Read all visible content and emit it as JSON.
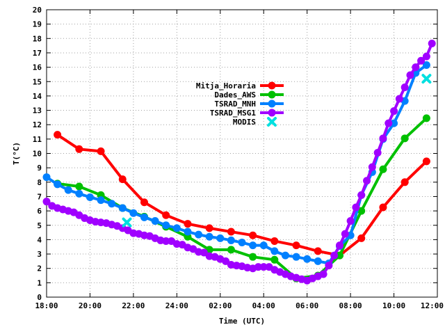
{
  "chart_data": {
    "type": "line",
    "xlabel": "Time (UTC)",
    "ylabel": "T(°C)",
    "x_unit": "hour",
    "xlim": [
      18,
      36
    ],
    "ylim": [
      0,
      20
    ],
    "x_ticks": [
      18,
      20,
      22,
      24,
      26,
      28,
      30,
      32,
      34,
      36
    ],
    "x_tick_labels": [
      "18:00",
      "20:00",
      "22:00",
      "24:00",
      "02:00",
      "04:00",
      "06:00",
      "08:00",
      "10:00",
      "12:00"
    ],
    "y_ticks": [
      0,
      1,
      2,
      3,
      4,
      5,
      6,
      7,
      8,
      9,
      10,
      11,
      12,
      13,
      14,
      15,
      16,
      17,
      18,
      19,
      20
    ],
    "grid": true,
    "legend_position": "center",
    "series": [
      {
        "name": "Mitja_Horaria",
        "color": "#ff0000",
        "marker": "circle",
        "x": [
          18.5,
          19.5,
          20.5,
          21.5,
          22.5,
          23.5,
          24.5,
          25.5,
          26.5,
          27.5,
          28.5,
          29.5,
          30.5,
          31.5,
          32.5,
          33.5,
          34.5,
          35.5
        ],
        "y": [
          11.3,
          10.3,
          10.15,
          8.2,
          6.6,
          5.7,
          5.1,
          4.8,
          4.55,
          4.3,
          3.9,
          3.6,
          3.2,
          2.9,
          4.1,
          6.25,
          8.0,
          9.45
        ]
      },
      {
        "name": "Dades_AWS",
        "color": "#00c000",
        "marker": "circle",
        "x": [
          18.5,
          19.5,
          20.5,
          21.5,
          22.5,
          23.5,
          24.5,
          25.5,
          26.5,
          27.5,
          28.5,
          29.5,
          30.5,
          31.5,
          32.5,
          33.5,
          34.5,
          35.5
        ],
        "y": [
          7.9,
          7.7,
          7.1,
          6.2,
          5.6,
          4.9,
          4.2,
          3.3,
          3.3,
          2.8,
          2.6,
          1.3,
          1.5,
          2.9,
          6.0,
          8.9,
          11.05,
          12.45
        ]
      },
      {
        "name": "TSRAD_MNH",
        "color": "#0080ff",
        "marker": "circle",
        "x": [
          18.0,
          18.5,
          19.0,
          19.5,
          20.0,
          20.5,
          21.0,
          21.5,
          22.0,
          22.5,
          23.0,
          23.5,
          24.0,
          24.5,
          25.0,
          25.5,
          26.0,
          26.5,
          27.0,
          27.5,
          28.0,
          28.5,
          29.0,
          29.5,
          30.0,
          30.5,
          31.0,
          31.5,
          32.0,
          32.5,
          33.0,
          33.5,
          34.0,
          34.5,
          35.0,
          35.5
        ],
        "y": [
          8.35,
          7.85,
          7.45,
          7.2,
          6.95,
          6.75,
          6.5,
          6.2,
          5.85,
          5.55,
          5.3,
          5.0,
          4.8,
          4.55,
          4.35,
          4.2,
          4.1,
          3.95,
          3.8,
          3.6,
          3.6,
          3.2,
          2.9,
          2.8,
          2.65,
          2.5,
          2.35,
          3.55,
          4.3,
          7.1,
          8.7,
          11.0,
          12.1,
          13.65,
          15.6,
          16.15
        ]
      },
      {
        "name": "TSRAD_MSG1",
        "color": "#a000ff",
        "marker": "circle",
        "x": [
          18.0,
          18.25,
          18.5,
          18.75,
          19.0,
          19.25,
          19.5,
          19.75,
          20.0,
          20.25,
          20.5,
          20.75,
          21.0,
          21.25,
          21.5,
          21.75,
          22.0,
          22.25,
          22.5,
          22.75,
          23.0,
          23.25,
          23.5,
          23.75,
          24.0,
          24.25,
          24.5,
          24.75,
          25.0,
          25.25,
          25.5,
          25.75,
          26.0,
          26.25,
          26.5,
          26.75,
          27.0,
          27.25,
          27.5,
          27.75,
          28.0,
          28.25,
          28.5,
          28.75,
          29.0,
          29.25,
          29.5,
          29.75,
          30.0,
          30.25,
          30.5,
          30.75,
          31.0,
          31.25,
          31.5,
          31.75,
          32.0,
          32.25,
          32.5,
          32.75,
          33.0,
          33.25,
          33.5,
          33.75,
          34.0,
          34.25,
          34.5,
          34.75,
          35.0,
          35.25,
          35.5,
          35.75
        ],
        "y": [
          6.65,
          6.35,
          6.2,
          6.1,
          6.0,
          5.9,
          5.7,
          5.5,
          5.35,
          5.25,
          5.2,
          5.15,
          5.05,
          4.95,
          4.8,
          4.65,
          4.45,
          4.4,
          4.3,
          4.25,
          4.1,
          3.95,
          3.9,
          3.9,
          3.7,
          3.65,
          3.45,
          3.35,
          3.15,
          3.1,
          2.85,
          2.8,
          2.65,
          2.5,
          2.25,
          2.2,
          2.15,
          2.05,
          2.0,
          2.1,
          2.1,
          2.1,
          1.9,
          1.75,
          1.6,
          1.45,
          1.35,
          1.25,
          1.15,
          1.3,
          1.45,
          1.6,
          2.2,
          2.9,
          3.6,
          4.4,
          5.3,
          6.25,
          7.1,
          8.1,
          9.05,
          10.05,
          11.05,
          12.1,
          12.95,
          13.8,
          14.6,
          15.45,
          16.0,
          16.45,
          16.75,
          17.65
        ]
      },
      {
        "name": "MODIS",
        "color": "#00e0e0",
        "marker": "x",
        "x": [
          21.7,
          35.5
        ],
        "y": [
          5.2,
          15.2
        ]
      }
    ]
  }
}
